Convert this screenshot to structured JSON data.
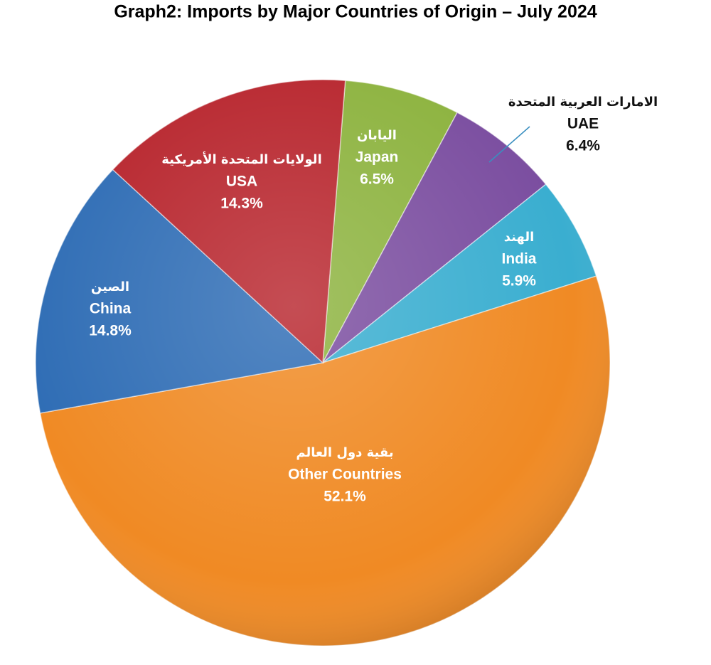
{
  "chart_data": {
    "type": "pie",
    "title": "Graph2: Imports by Major Countries of Origin – July 2024",
    "categories": [
      "Japan",
      "UAE",
      "India",
      "Other Countries",
      "China",
      "USA"
    ],
    "categories_arabic": [
      "اليابان",
      "الامارات العربية المتحدة",
      "الهند",
      "بقية دول العالم",
      "الصين",
      "الولايات المتحدة الأمريكية"
    ],
    "values": [
      6.5,
      6.4,
      5.9,
      52.1,
      14.8,
      14.3
    ],
    "value_labels": [
      "6.5%",
      "6.4%",
      "5.9%",
      "52.1%",
      "14.8%",
      "14.3%"
    ],
    "colors": [
      "#8db33f",
      "#7b4ea0",
      "#3aaed0",
      "#f08a24",
      "#2f6db5",
      "#b8262e"
    ]
  }
}
